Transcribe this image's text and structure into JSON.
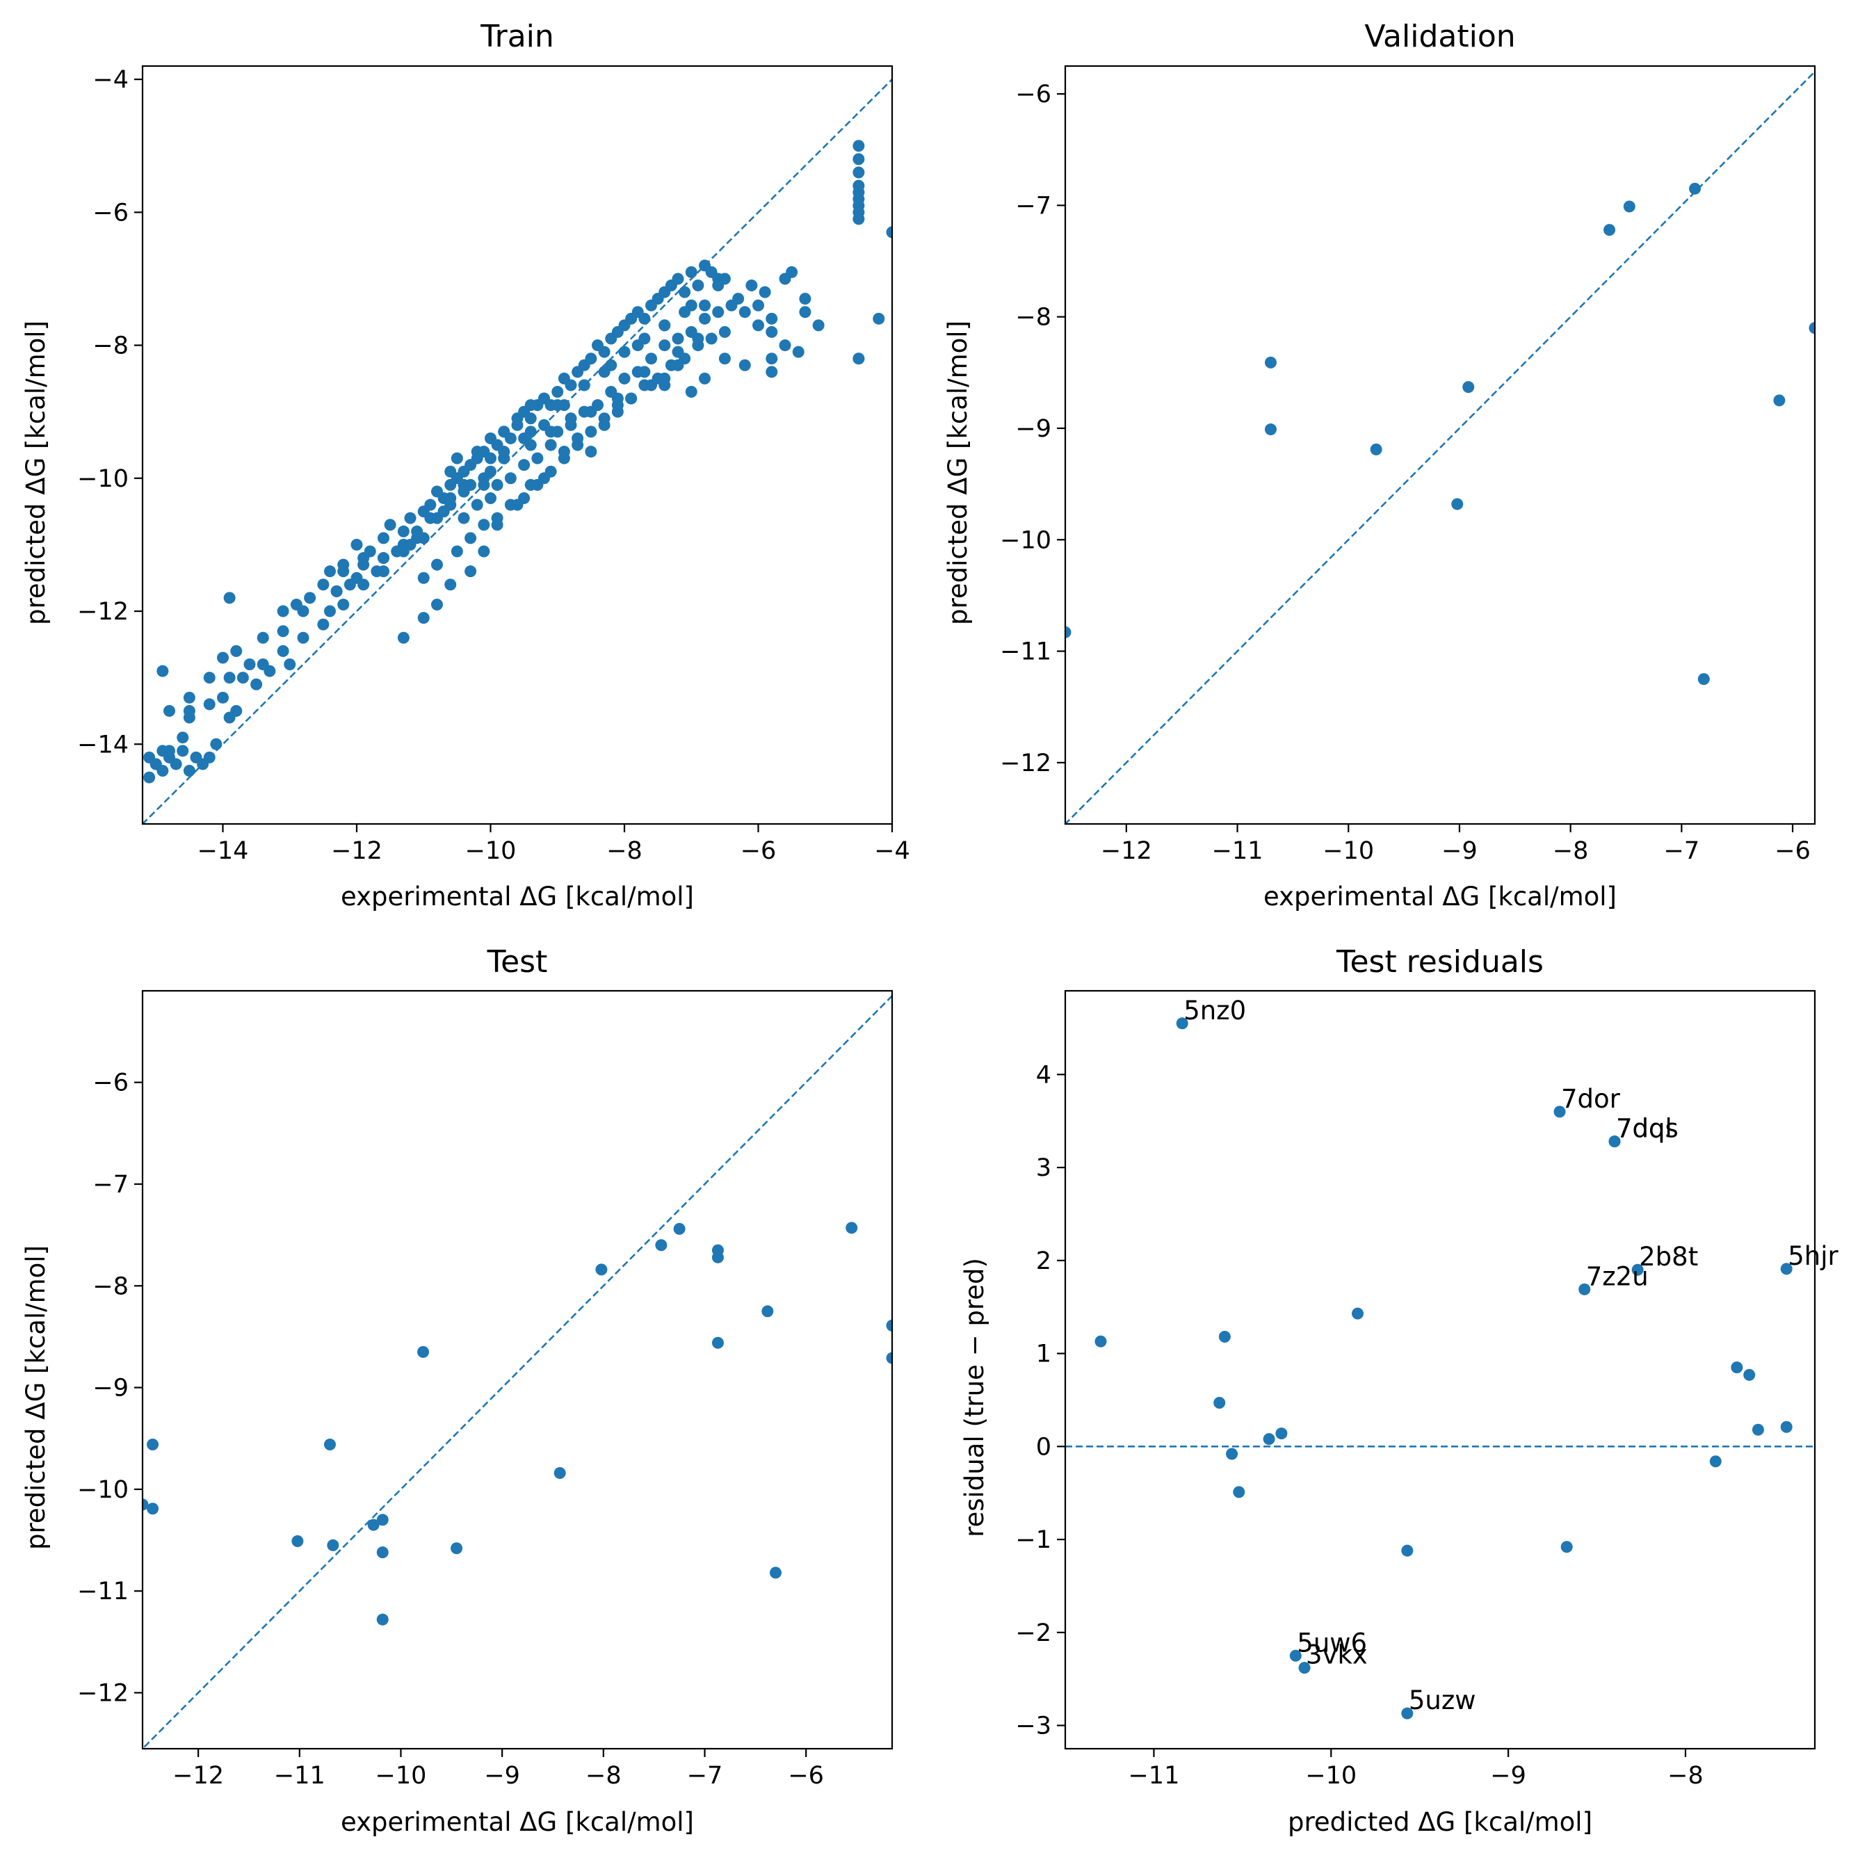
{
  "colors": {
    "marker": "#1f77b4",
    "reference_line": "#1f77b4",
    "axes": "#000000",
    "background": "#ffffff"
  },
  "chart_data": [
    {
      "id": "train",
      "type": "scatter",
      "title": "Train",
      "xlabel": "experimental ΔG [kcal/mol]",
      "ylabel": "predicted ΔG [kcal/mol]",
      "xlim": [
        -15.2,
        -4.0
      ],
      "ylim": [
        -15.2,
        -3.8
      ],
      "xticks": [
        -14,
        -12,
        -10,
        -8,
        -6,
        -4
      ],
      "yticks": [
        -14,
        -12,
        -10,
        -8,
        -6,
        -4
      ],
      "xtick_labels": [
        "−14",
        "−12",
        "−10",
        "−8",
        "−6",
        "−4"
      ],
      "ytick_labels": [
        "−14",
        "−12",
        "−10",
        "−8",
        "−6",
        "−4"
      ],
      "reference_line": "y = x",
      "x": [
        -15.1,
        -15.0,
        -14.9,
        -14.8,
        -14.7,
        -14.6,
        -14.5,
        -14.4,
        -14.3,
        -14.2,
        -14.1,
        -15.1,
        -15.0,
        -14.9,
        -14.8,
        -14.8,
        -14.6,
        -14.5,
        -14.9,
        -14.5,
        -14.5,
        -14.2,
        -14.2,
        -14.0,
        -13.9,
        -13.9,
        -13.8,
        -13.8,
        -13.6,
        -13.5,
        -13.4,
        -13.3,
        -13.1,
        -13.0,
        -12.9,
        -12.8,
        -12.7,
        -12.5,
        -12.4,
        -12.3,
        -12.2,
        -12.0,
        -11.9,
        -11.8,
        -11.6,
        -11.5,
        -11.3,
        -11.2,
        -11.0,
        -10.9,
        -10.8,
        -10.7,
        -10.6,
        -10.5,
        -10.4,
        -10.3,
        -10.2,
        -10.1,
        -10.0,
        -9.9,
        -9.8,
        -9.7,
        -9.6,
        -9.5,
        -9.4,
        -9.3,
        -9.2,
        -9.1,
        -9.0,
        -8.9,
        -8.8,
        -8.7,
        -8.6,
        -8.5,
        -8.4,
        -8.3,
        -8.2,
        -8.1,
        -8.0,
        -7.9,
        -7.8,
        -7.7,
        -7.6,
        -7.5,
        -7.4,
        -7.3,
        -7.2,
        -7.1,
        -7.0,
        -6.9,
        -6.8,
        -6.7,
        -6.6,
        -6.5,
        -6.3,
        -6.1,
        -6.0,
        -5.9,
        -5.8,
        -5.6,
        -5.5,
        -5.3,
        -13.9,
        -13.1,
        -12.3,
        -12.2,
        -11.9,
        -11.6,
        -11.3,
        -11.1,
        -10.8,
        -10.6,
        -10.4,
        -10.6,
        -10.5,
        -10.2,
        -10.0,
        -9.8,
        -9.6,
        -9.4,
        -9.2,
        -10.4,
        -10.2,
        -10.0,
        -9.9,
        -9.7,
        -9.5,
        -9.3,
        -9.1,
        -9.0,
        -8.8,
        -8.6,
        -8.4,
        -8.2,
        -8.0,
        -7.8,
        -7.6,
        -7.4,
        -7.2,
        -7.0,
        -6.8,
        -6.6,
        -6.4,
        -6.2,
        -6.0,
        -5.8,
        -5.6,
        -5.4,
        -11.0,
        -10.8,
        -10.5,
        -10.3,
        -10.1,
        -9.9,
        -9.7,
        -9.5,
        -9.3,
        -9.1,
        -8.9,
        -8.7,
        -8.5,
        -8.3,
        -8.1,
        -7.9,
        -7.7,
        -7.5,
        -7.3,
        -7.1,
        -6.9,
        -6.7,
        -6.5,
        -12.1,
        -11.7,
        -11.4,
        -11.1,
        -10.9,
        -10.6,
        -10.3,
        -10.0,
        -9.8,
        -9.5,
        -9.2,
        -8.9,
        -8.6,
        -8.3,
        -8.0,
        -7.7,
        -7.4,
        -7.1,
        -6.8,
        -12.4,
        -12.0,
        -11.6,
        -11.2,
        -10.7,
        -10.4,
        -10.1,
        -9.8,
        -9.4,
        -9.0,
        -8.6,
        -8.2,
        -7.8,
        -7.4,
        -7.0,
        -6.6,
        -11.3,
        -11.0,
        -10.8,
        -10.6,
        -10.3,
        -10.1,
        -9.9,
        -9.6,
        -9.4,
        -9.2,
        -8.9,
        -8.7,
        -8.5,
        -8.3,
        -8.1,
        -7.9,
        -7.6,
        -7.4,
        -7.2,
        -7.0,
        -6.8,
        -4.5,
        -4.5,
        -4.5,
        -4.5,
        -4.5,
        -4.5,
        -4.5,
        -4.5,
        -4.5,
        -4.5,
        -4.0,
        -4.2,
        -4.5,
        -5.1,
        -5.3,
        -5.8,
        -5.8,
        -6.2,
        -6.5,
        -6.9,
        -7.2,
        -7.4,
        -7.7,
        -8.1,
        -8.5,
        -8.8,
        -9.1,
        -9.4,
        -9.8,
        -10.1,
        -10.4,
        -10.7,
        -11.0,
        -11.3,
        -11.6,
        -11.9,
        -12.2,
        -12.5,
        -12.8,
        -13.1,
        -13.4,
        -13.7,
        -14.0
      ],
      "y": [
        -14.2,
        -14.3,
        -14.1,
        -14.2,
        -14.3,
        -14.1,
        -14.4,
        -14.2,
        -14.3,
        -14.2,
        -14.0,
        -14.5,
        -14.3,
        -14.4,
        -14.1,
        -13.5,
        -13.9,
        -13.6,
        -12.9,
        -13.3,
        -13.5,
        -13.4,
        -13.0,
        -12.7,
        -13.0,
        -13.6,
        -12.6,
        -13.5,
        -12.8,
        -13.1,
        -12.4,
        -12.9,
        -12.3,
        -12.8,
        -11.9,
        -12.0,
        -11.8,
        -11.6,
        -11.4,
        -11.7,
        -11.3,
        -11.0,
        -11.2,
        -11.1,
        -10.9,
        -10.7,
        -10.8,
        -10.6,
        -10.5,
        -10.4,
        -10.2,
        -10.3,
        -10.1,
        -10.0,
        -9.9,
        -9.8,
        -9.7,
        -9.6,
        -9.7,
        -9.5,
        -9.3,
        -9.4,
        -9.2,
        -9.0,
        -9.1,
        -8.9,
        -8.8,
        -8.9,
        -8.7,
        -8.5,
        -8.6,
        -8.4,
        -8.3,
        -8.2,
        -8.0,
        -8.1,
        -7.9,
        -7.8,
        -7.7,
        -7.6,
        -7.5,
        -7.6,
        -7.4,
        -7.3,
        -7.2,
        -7.1,
        -7.0,
        -7.2,
        -6.9,
        -7.1,
        -6.8,
        -6.9,
        -7.0,
        -7.0,
        -7.3,
        -7.1,
        -7.4,
        -7.2,
        -7.6,
        -7.0,
        -6.9,
        -7.5,
        -11.8,
        -12.0,
        -11.7,
        -11.4,
        -11.3,
        -11.2,
        -11.0,
        -10.9,
        -10.6,
        -10.4,
        -10.1,
        -9.9,
        -9.7,
        -9.6,
        -9.4,
        -9.3,
        -9.1,
        -8.9,
        -8.8,
        -10.6,
        -10.4,
        -10.3,
        -10.1,
        -10.0,
        -9.8,
        -9.7,
        -9.5,
        -9.3,
        -9.2,
        -9.0,
        -8.9,
        -8.7,
        -8.5,
        -8.4,
        -8.2,
        -8.0,
        -7.9,
        -7.8,
        -7.6,
        -7.5,
        -7.4,
        -7.5,
        -7.7,
        -7.8,
        -8.0,
        -8.1,
        -11.5,
        -11.3,
        -11.1,
        -10.9,
        -10.7,
        -10.6,
        -10.4,
        -10.3,
        -10.1,
        -9.9,
        -9.7,
        -9.5,
        -9.3,
        -9.1,
        -9.0,
        -8.8,
        -8.6,
        -8.5,
        -8.3,
        -8.2,
        -8.0,
        -7.9,
        -7.8,
        -11.6,
        -11.4,
        -11.1,
        -10.8,
        -10.6,
        -10.3,
        -10.1,
        -9.9,
        -9.7,
        -9.4,
        -9.2,
        -8.9,
        -8.6,
        -8.4,
        -8.1,
        -7.9,
        -7.7,
        -7.5,
        -7.4,
        -12.0,
        -11.5,
        -11.2,
        -11.0,
        -10.5,
        -10.2,
        -10.0,
        -9.6,
        -9.3,
        -8.9,
        -8.6,
        -8.3,
        -8.0,
        -7.7,
        -7.4,
        -7.1,
        -12.4,
        -12.1,
        -11.9,
        -11.6,
        -11.4,
        -11.1,
        -10.7,
        -10.4,
        -10.1,
        -10.0,
        -9.6,
        -9.4,
        -9.6,
        -9.2,
        -8.9,
        -8.8,
        -8.6,
        -8.5,
        -8.3,
        -8.7,
        -8.5,
        -5.0,
        -5.2,
        -5.4,
        -5.8,
        -5.9,
        -6.0,
        -6.1,
        -5.6,
        -5.7,
        -8.2,
        -6.3,
        -7.6,
        -8.2,
        -7.7,
        -7.3,
        -8.2,
        -8.4,
        -8.3,
        -8.2,
        -7.9,
        -8.1,
        -8.6,
        -8.4,
        -8.8,
        -9.0,
        -9.1,
        -9.3,
        -9.5,
        -9.7,
        -10.1,
        -10.2,
        -10.5,
        -10.9,
        -11.1,
        -11.4,
        -11.6,
        -11.9,
        -12.2,
        -12.4,
        -12.6,
        -12.8,
        -13.0,
        -13.3
      ]
    },
    {
      "id": "validation",
      "type": "scatter",
      "title": "Validation",
      "xlabel": "experimental ΔG [kcal/mol]",
      "ylabel": "predicted ΔG [kcal/mol]",
      "xlim": [
        -12.55,
        -5.8
      ],
      "ylim": [
        -12.55,
        -5.75
      ],
      "xticks": [
        -12,
        -11,
        -10,
        -9,
        -8,
        -7,
        -6
      ],
      "yticks": [
        -12,
        -11,
        -10,
        -9,
        -8,
        -7,
        -6
      ],
      "xtick_labels": [
        "−12",
        "−11",
        "−10",
        "−9",
        "−8",
        "−7",
        "−6"
      ],
      "ytick_labels": [
        "−12",
        "−11",
        "−10",
        "−9",
        "−8",
        "−7",
        "−6"
      ],
      "reference_line": "y = x",
      "x": [
        -12.55,
        -10.7,
        -10.7,
        -9.75,
        -9.02,
        -8.92,
        -7.65,
        -7.47,
        -6.88,
        -6.8,
        -6.12,
        -5.8
      ],
      "y": [
        -10.83,
        -8.41,
        -9.01,
        -9.19,
        -9.68,
        -8.63,
        -7.22,
        -7.01,
        -6.85,
        -11.25,
        -8.75,
        -8.1
      ]
    },
    {
      "id": "test",
      "type": "scatter",
      "title": "Test",
      "xlabel": "experimental ΔG [kcal/mol]",
      "ylabel": "predicted ΔG [kcal/mol]",
      "xlim": [
        -12.55,
        -5.15
      ],
      "ylim": [
        -12.55,
        -5.1
      ],
      "xticks": [
        -12,
        -11,
        -10,
        -9,
        -8,
        -7,
        -6
      ],
      "yticks": [
        -12,
        -11,
        -10,
        -9,
        -8,
        -7,
        -6
      ],
      "xtick_labels": [
        "−12",
        "−11",
        "−10",
        "−9",
        "−8",
        "−7",
        "−6"
      ],
      "ytick_labels": [
        "−12",
        "−11",
        "−10",
        "−9",
        "−8",
        "−7",
        "−6"
      ],
      "reference_line": "y = x",
      "x": [
        -12.55,
        -12.45,
        -12.45,
        -11.02,
        -10.7,
        -10.67,
        -10.27,
        -10.18,
        -10.18,
        -10.18,
        -9.78,
        -9.45,
        -8.43,
        -8.02,
        -7.43,
        -7.25,
        -6.87,
        -6.87,
        -6.87,
        -6.38,
        -6.3,
        -5.55,
        -5.15,
        -5.15
      ],
      "y": [
        -10.15,
        -9.56,
        -10.19,
        -10.51,
        -9.56,
        -10.55,
        -10.35,
        -10.3,
        -10.62,
        -11.28,
        -8.65,
        -10.58,
        -9.84,
        -7.84,
        -7.6,
        -7.44,
        -7.65,
        -7.72,
        -8.56,
        -8.25,
        -10.82,
        -7.43,
        -8.39,
        -8.71
      ]
    },
    {
      "id": "test_residuals",
      "type": "scatter",
      "title": "Test residuals",
      "xlabel": "predicted ΔG [kcal/mol]",
      "ylabel": "residual (true − pred)",
      "xlim": [
        -11.5,
        -7.27
      ],
      "ylim": [
        -3.25,
        4.9
      ],
      "xticks": [
        -11,
        -10,
        -9,
        -8
      ],
      "yticks": [
        -3,
        -2,
        -1,
        0,
        1,
        2,
        3,
        4
      ],
      "xtick_labels": [
        "−11",
        "−10",
        "−9",
        "−8"
      ],
      "ytick_labels": [
        "−3",
        "−2",
        "−1",
        "0",
        "1",
        "2",
        "3",
        "4"
      ],
      "reference_line": "y = 0",
      "points": [
        {
          "x": -10.84,
          "y": 4.55,
          "label": "5nz0"
        },
        {
          "x": -8.71,
          "y": 3.6,
          "label": "7dor"
        },
        {
          "x": -8.4,
          "y": 3.28,
          "label": "7dqs"
        },
        {
          "x": -8.4,
          "y": 3.28,
          "label": "7dql"
        },
        {
          "x": -8.27,
          "y": 1.9,
          "label": "2b8t"
        },
        {
          "x": -8.57,
          "y": 1.69,
          "label": "7z2u"
        },
        {
          "x": -7.43,
          "y": 1.91,
          "label": "5hjr"
        },
        {
          "x": -10.2,
          "y": -2.25,
          "label": "5uw6"
        },
        {
          "x": -10.15,
          "y": -2.38,
          "label": "3vkx"
        },
        {
          "x": -9.57,
          "y": -2.87,
          "label": "5uzw"
        },
        {
          "x": -11.3,
          "y": 1.13,
          "label": ""
        },
        {
          "x": -10.6,
          "y": 1.18,
          "label": ""
        },
        {
          "x": -10.63,
          "y": 0.47,
          "label": ""
        },
        {
          "x": -10.56,
          "y": -0.08,
          "label": ""
        },
        {
          "x": -10.52,
          "y": -0.49,
          "label": ""
        },
        {
          "x": -10.35,
          "y": 0.08,
          "label": ""
        },
        {
          "x": -10.28,
          "y": 0.14,
          "label": ""
        },
        {
          "x": -9.85,
          "y": 1.43,
          "label": ""
        },
        {
          "x": -9.57,
          "y": -1.12,
          "label": ""
        },
        {
          "x": -8.67,
          "y": -1.08,
          "label": ""
        },
        {
          "x": -7.83,
          "y": -0.16,
          "label": ""
        },
        {
          "x": -7.71,
          "y": 0.85,
          "label": ""
        },
        {
          "x": -7.64,
          "y": 0.77,
          "label": ""
        },
        {
          "x": -7.59,
          "y": 0.18,
          "label": ""
        },
        {
          "x": -7.43,
          "y": 0.21,
          "label": ""
        }
      ]
    }
  ]
}
